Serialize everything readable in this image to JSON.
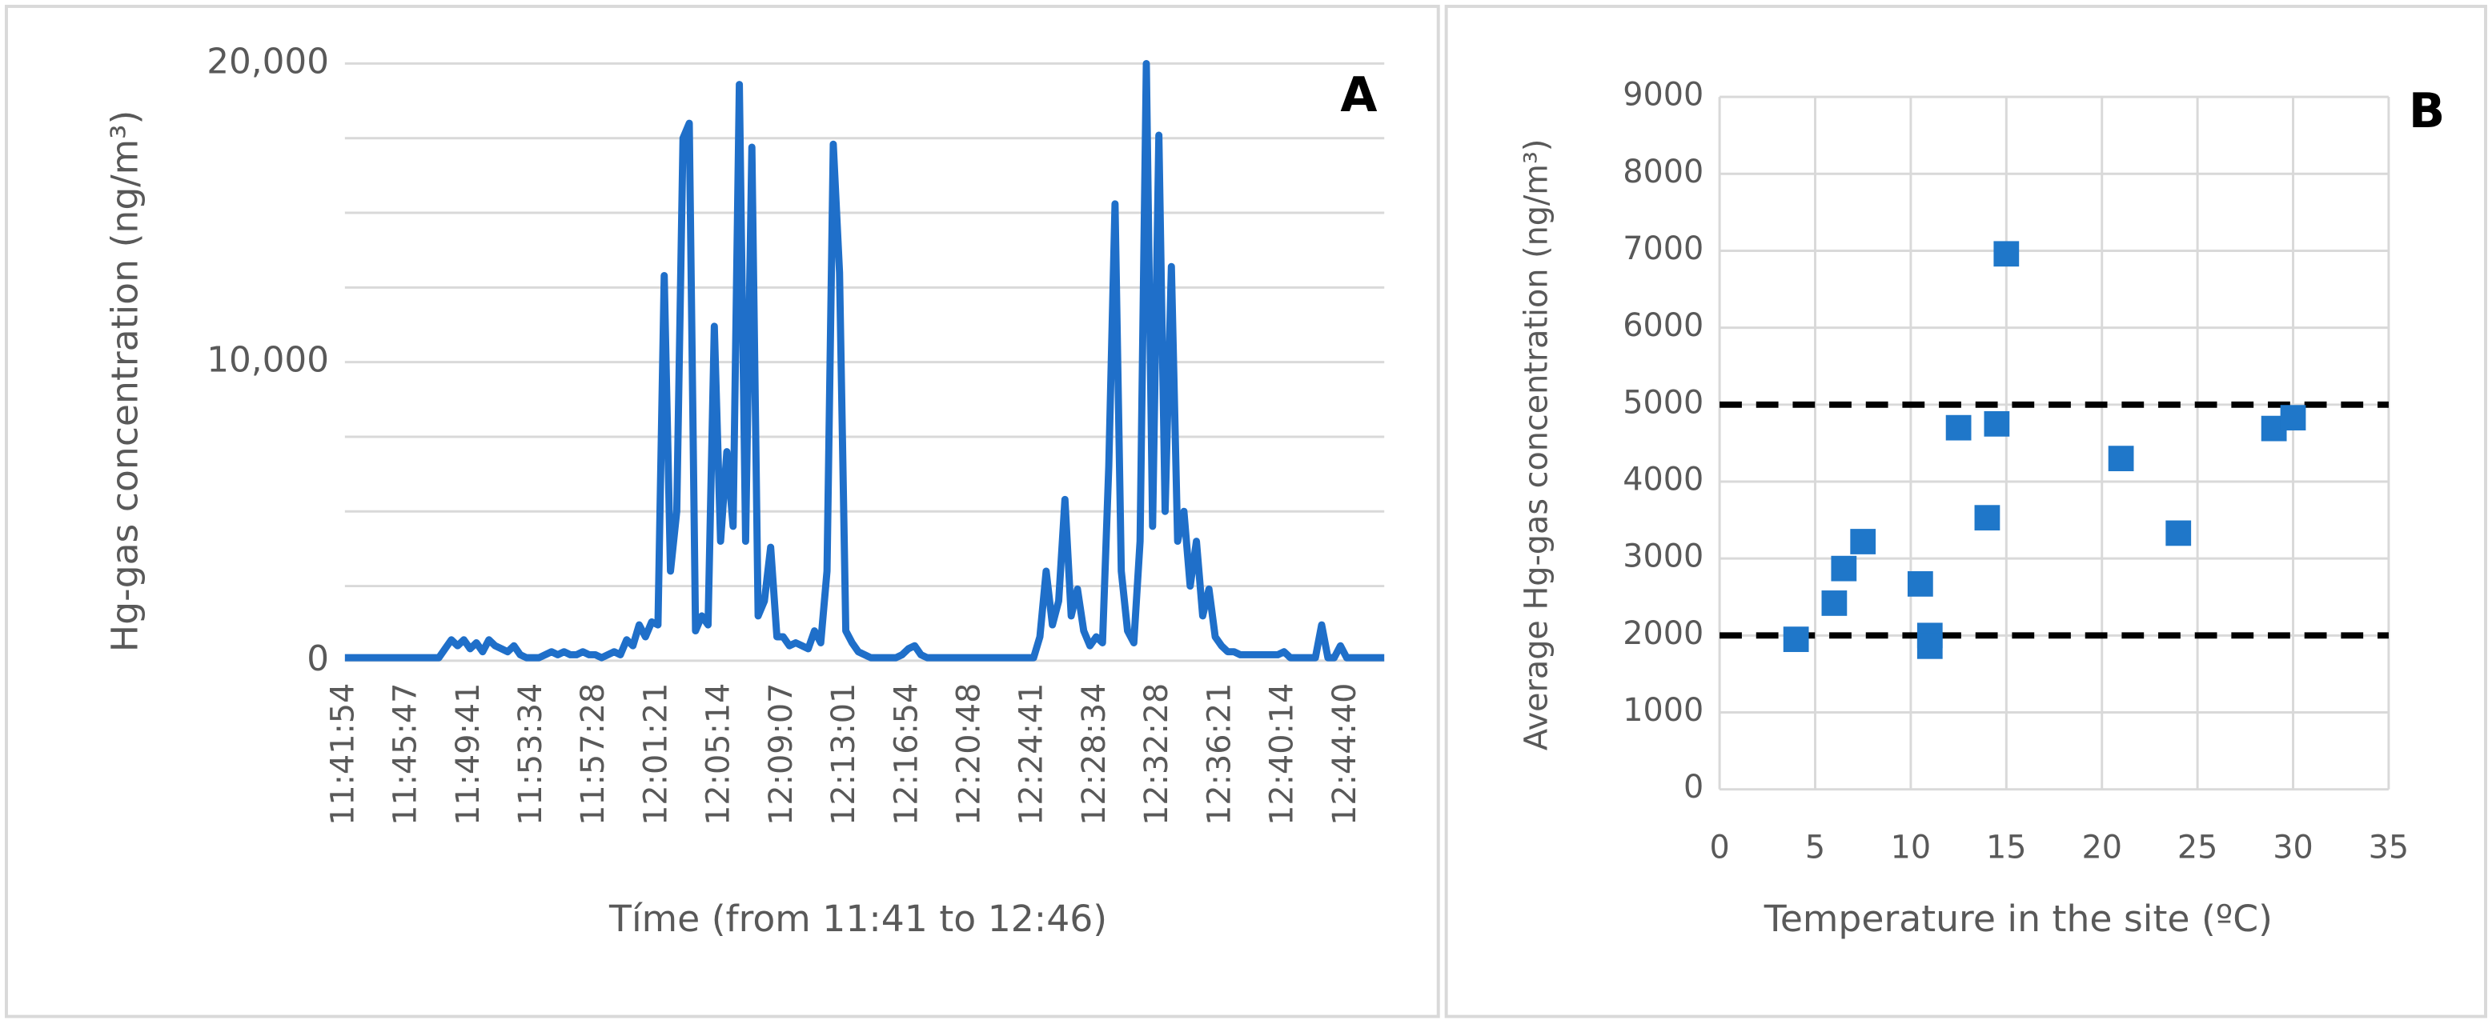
{
  "chart_data": [
    {
      "type": "line",
      "title": "A",
      "y_label": "Hg-gas concentration (ng/m³)",
      "x_label": "Tíme (from 11:41 to 12:46)",
      "categories": [
        "11:41:54",
        null,
        null,
        null,
        null,
        null,
        null,
        null,
        null,
        null,
        "11:45:47",
        null,
        null,
        null,
        null,
        null,
        null,
        null,
        null,
        null,
        "11:49:41",
        null,
        null,
        null,
        null,
        null,
        null,
        null,
        null,
        null,
        "11:53:34",
        null,
        null,
        null,
        null,
        null,
        null,
        null,
        null,
        null,
        "11:57:28",
        null,
        null,
        null,
        null,
        null,
        null,
        null,
        null,
        null,
        "12:01:21",
        null,
        null,
        null,
        null,
        null,
        null,
        null,
        null,
        null,
        "12:05:14",
        null,
        null,
        null,
        null,
        null,
        null,
        null,
        null,
        null,
        "12:09:07",
        null,
        null,
        null,
        null,
        null,
        null,
        null,
        null,
        null,
        "12:13:01",
        null,
        null,
        null,
        null,
        null,
        null,
        null,
        null,
        null,
        "12:16:54",
        null,
        null,
        null,
        null,
        null,
        null,
        null,
        null,
        null,
        "12:20:48",
        null,
        null,
        null,
        null,
        null,
        null,
        null,
        null,
        null,
        "12:24:41",
        null,
        null,
        null,
        null,
        null,
        null,
        null,
        null,
        null,
        "12:28:34",
        null,
        null,
        null,
        null,
        null,
        null,
        null,
        null,
        null,
        "12:32:28",
        null,
        null,
        null,
        null,
        null,
        null,
        null,
        null,
        null,
        "12:36:21",
        null,
        null,
        null,
        null,
        null,
        null,
        null,
        null,
        null,
        "12:40:14",
        null,
        null,
        null,
        null,
        null,
        null,
        null,
        null,
        null,
        "12:44:40",
        null,
        null,
        null,
        null,
        null,
        null
      ],
      "series": [
        {
          "color": "#1f6fc9",
          "values": [
            100,
            100,
            100,
            100,
            100,
            100,
            100,
            100,
            100,
            100,
            100,
            100,
            100,
            100,
            100,
            100,
            400,
            700,
            500,
            700,
            400,
            600,
            300,
            700,
            500,
            400,
            300,
            500,
            200,
            100,
            100,
            100,
            200,
            300,
            200,
            300,
            200,
            200,
            300,
            200,
            200,
            100,
            200,
            300,
            200,
            700,
            500,
            1200,
            800,
            1300,
            1200,
            12900,
            3000,
            5000,
            17500,
            18000,
            1000,
            1500,
            1200,
            11200,
            4000,
            7000,
            4500,
            19300,
            4000,
            17200,
            1500,
            2000,
            3800,
            800,
            800,
            500,
            600,
            500,
            400,
            1000,
            600,
            3000,
            17300,
            13000,
            1000,
            600,
            300,
            200,
            100,
            100,
            100,
            100,
            100,
            200,
            400,
            500,
            200,
            100,
            100,
            100,
            100,
            100,
            100,
            100,
            100,
            100,
            100,
            100,
            100,
            100,
            100,
            100,
            100,
            100,
            100,
            800,
            3000,
            1200,
            2000,
            5400,
            1500,
            2400,
            1000,
            500,
            800,
            600,
            6500,
            15300,
            3000,
            1000,
            600,
            4000,
            20000,
            4500,
            17600,
            5000,
            13200,
            4000,
            5000,
            2500,
            4000,
            1500,
            2400,
            800,
            500,
            300,
            300,
            200,
            200,
            200,
            200,
            200,
            200,
            200,
            300,
            100,
            100,
            100,
            100,
            100,
            1200,
            100,
            100,
            500,
            100,
            100,
            100,
            100,
            100,
            100,
            100
          ]
        }
      ],
      "ylim": [
        0,
        20000
      ],
      "yticks": [
        0,
        {
          "value": 10000,
          "label": "10,000"
        },
        {
          "value": 20000,
          "label": "20,000"
        }
      ],
      "ygrid": [
        0,
        2500,
        5000,
        7500,
        10000,
        12500,
        15000,
        17500,
        20000
      ],
      "grid": true
    },
    {
      "type": "scatter",
      "title": "B",
      "y_label": "Average Hg-gas concentration (ng/m³)",
      "x_label": "Temperature in the site (ºC)",
      "x": [
        4,
        6,
        6.5,
        7.5,
        10.5,
        11,
        11,
        12.5,
        14,
        14.5,
        15,
        21,
        24,
        29,
        30
      ],
      "values": [
        1950,
        2420,
        2870,
        3220,
        2670,
        2000,
        1860,
        4700,
        3530,
        4750,
        6960,
        4300,
        3330,
        4690,
        4830
      ],
      "color": "#1f77c9",
      "xlim": [
        0,
        35
      ],
      "xticks": [
        0,
        5,
        10,
        15,
        20,
        25,
        30,
        35
      ],
      "ylim": [
        0,
        9000
      ],
      "yticks": [
        0,
        1000,
        2000,
        3000,
        4000,
        5000,
        6000,
        7000,
        8000,
        9000
      ],
      "hlines": [
        2000,
        5000
      ],
      "grid": true
    }
  ]
}
